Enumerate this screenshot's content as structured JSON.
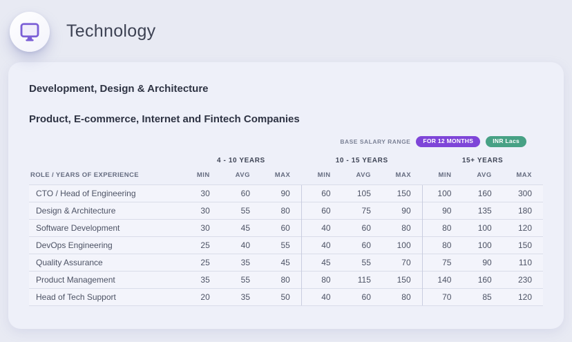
{
  "header": {
    "title": "Technology",
    "icon": "monitor-icon"
  },
  "card": {
    "heading_primary": "Development, Design & Architecture",
    "heading_secondary": "Product, E-commerce, Internet and Fintech Companies",
    "badges": {
      "label": "BASE SALARY RANGE",
      "period_pill": "FOR 12 MONTHS",
      "currency_pill": "INR Lacs"
    }
  },
  "table": {
    "role_header": "ROLE / YEARS OF EXPERIENCE",
    "groups": [
      "4 - 10 YEARS",
      "10 - 15 YEARS",
      "15+ YEARS"
    ],
    "sub_headers": [
      "MIN",
      "AVG",
      "MAX"
    ],
    "rows": [
      {
        "role": "CTO / Head of Engineering",
        "values": [
          30,
          60,
          90,
          60,
          105,
          150,
          100,
          160,
          300
        ]
      },
      {
        "role": "Design & Architecture",
        "values": [
          30,
          55,
          80,
          60,
          75,
          90,
          90,
          135,
          180
        ]
      },
      {
        "role": "Software Development",
        "values": [
          30,
          45,
          60,
          40,
          60,
          80,
          80,
          100,
          120
        ]
      },
      {
        "role": "DevOps Engineering",
        "values": [
          25,
          40,
          55,
          40,
          60,
          100,
          80,
          100,
          150
        ]
      },
      {
        "role": "Quality Assurance",
        "values": [
          25,
          35,
          45,
          45,
          55,
          70,
          75,
          90,
          110
        ]
      },
      {
        "role": "Product Management",
        "values": [
          35,
          55,
          80,
          80,
          115,
          150,
          140,
          160,
          230
        ]
      },
      {
        "role": "Head of Tech Support",
        "values": [
          20,
          35,
          50,
          40,
          60,
          80,
          70,
          85,
          120
        ]
      }
    ]
  },
  "colors": {
    "accent_purple": "#7e45d8",
    "accent_green": "#47a185",
    "icon_purple": "#7b5fd6",
    "page_background": "#e8eaf3",
    "card_background": "#eef0f9"
  }
}
